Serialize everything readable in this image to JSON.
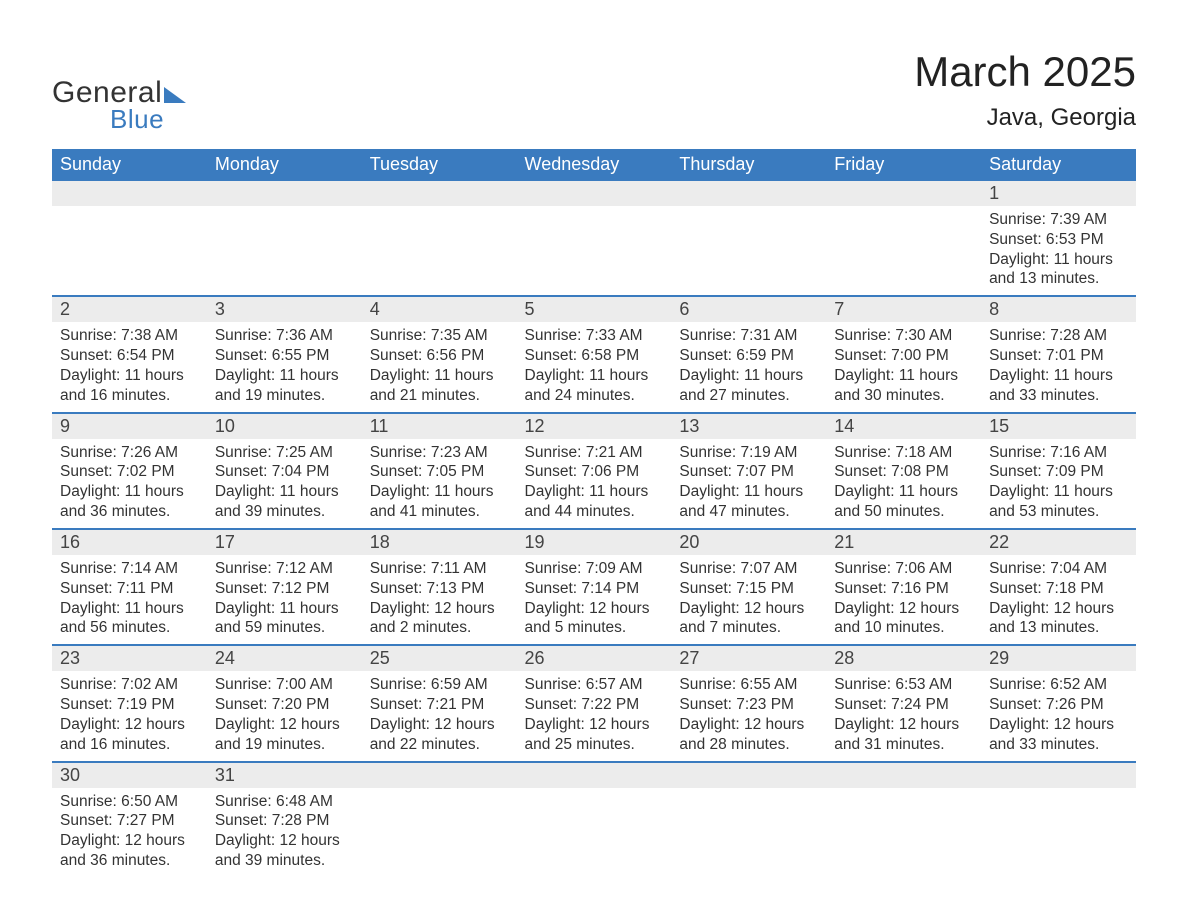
{
  "brand": {
    "word1": "General",
    "word2": "Blue"
  },
  "title": "March 2025",
  "location": "Java, Georgia",
  "colors": {
    "header_bg": "#3a7bbf",
    "header_text": "#ffffff",
    "daynum_bg": "#ececec",
    "border": "#3a7bbf",
    "body_text": "#333333",
    "brand_blue": "#3a7bbf"
  },
  "fonts": {
    "title_size": 42,
    "location_size": 24,
    "header_size": 18,
    "daynum_size": 18,
    "detail_size": 15.5
  },
  "days_of_week": [
    "Sunday",
    "Monday",
    "Tuesday",
    "Wednesday",
    "Thursday",
    "Friday",
    "Saturday"
  ],
  "labels": {
    "sunrise": "Sunrise:",
    "sunset": "Sunset:",
    "daylight": "Daylight:"
  },
  "weeks": [
    [
      null,
      null,
      null,
      null,
      null,
      null,
      {
        "n": "1",
        "sunrise": "7:39 AM",
        "sunset": "6:53 PM",
        "daylight": "11 hours and 13 minutes."
      }
    ],
    [
      {
        "n": "2",
        "sunrise": "7:38 AM",
        "sunset": "6:54 PM",
        "daylight": "11 hours and 16 minutes."
      },
      {
        "n": "3",
        "sunrise": "7:36 AM",
        "sunset": "6:55 PM",
        "daylight": "11 hours and 19 minutes."
      },
      {
        "n": "4",
        "sunrise": "7:35 AM",
        "sunset": "6:56 PM",
        "daylight": "11 hours and 21 minutes."
      },
      {
        "n": "5",
        "sunrise": "7:33 AM",
        "sunset": "6:58 PM",
        "daylight": "11 hours and 24 minutes."
      },
      {
        "n": "6",
        "sunrise": "7:31 AM",
        "sunset": "6:59 PM",
        "daylight": "11 hours and 27 minutes."
      },
      {
        "n": "7",
        "sunrise": "7:30 AM",
        "sunset": "7:00 PM",
        "daylight": "11 hours and 30 minutes."
      },
      {
        "n": "8",
        "sunrise": "7:28 AM",
        "sunset": "7:01 PM",
        "daylight": "11 hours and 33 minutes."
      }
    ],
    [
      {
        "n": "9",
        "sunrise": "7:26 AM",
        "sunset": "7:02 PM",
        "daylight": "11 hours and 36 minutes."
      },
      {
        "n": "10",
        "sunrise": "7:25 AM",
        "sunset": "7:04 PM",
        "daylight": "11 hours and 39 minutes."
      },
      {
        "n": "11",
        "sunrise": "7:23 AM",
        "sunset": "7:05 PM",
        "daylight": "11 hours and 41 minutes."
      },
      {
        "n": "12",
        "sunrise": "7:21 AM",
        "sunset": "7:06 PM",
        "daylight": "11 hours and 44 minutes."
      },
      {
        "n": "13",
        "sunrise": "7:19 AM",
        "sunset": "7:07 PM",
        "daylight": "11 hours and 47 minutes."
      },
      {
        "n": "14",
        "sunrise": "7:18 AM",
        "sunset": "7:08 PM",
        "daylight": "11 hours and 50 minutes."
      },
      {
        "n": "15",
        "sunrise": "7:16 AM",
        "sunset": "7:09 PM",
        "daylight": "11 hours and 53 minutes."
      }
    ],
    [
      {
        "n": "16",
        "sunrise": "7:14 AM",
        "sunset": "7:11 PM",
        "daylight": "11 hours and 56 minutes."
      },
      {
        "n": "17",
        "sunrise": "7:12 AM",
        "sunset": "7:12 PM",
        "daylight": "11 hours and 59 minutes."
      },
      {
        "n": "18",
        "sunrise": "7:11 AM",
        "sunset": "7:13 PM",
        "daylight": "12 hours and 2 minutes."
      },
      {
        "n": "19",
        "sunrise": "7:09 AM",
        "sunset": "7:14 PM",
        "daylight": "12 hours and 5 minutes."
      },
      {
        "n": "20",
        "sunrise": "7:07 AM",
        "sunset": "7:15 PM",
        "daylight": "12 hours and 7 minutes."
      },
      {
        "n": "21",
        "sunrise": "7:06 AM",
        "sunset": "7:16 PM",
        "daylight": "12 hours and 10 minutes."
      },
      {
        "n": "22",
        "sunrise": "7:04 AM",
        "sunset": "7:18 PM",
        "daylight": "12 hours and 13 minutes."
      }
    ],
    [
      {
        "n": "23",
        "sunrise": "7:02 AM",
        "sunset": "7:19 PM",
        "daylight": "12 hours and 16 minutes."
      },
      {
        "n": "24",
        "sunrise": "7:00 AM",
        "sunset": "7:20 PM",
        "daylight": "12 hours and 19 minutes."
      },
      {
        "n": "25",
        "sunrise": "6:59 AM",
        "sunset": "7:21 PM",
        "daylight": "12 hours and 22 minutes."
      },
      {
        "n": "26",
        "sunrise": "6:57 AM",
        "sunset": "7:22 PM",
        "daylight": "12 hours and 25 minutes."
      },
      {
        "n": "27",
        "sunrise": "6:55 AM",
        "sunset": "7:23 PM",
        "daylight": "12 hours and 28 minutes."
      },
      {
        "n": "28",
        "sunrise": "6:53 AM",
        "sunset": "7:24 PM",
        "daylight": "12 hours and 31 minutes."
      },
      {
        "n": "29",
        "sunrise": "6:52 AM",
        "sunset": "7:26 PM",
        "daylight": "12 hours and 33 minutes."
      }
    ],
    [
      {
        "n": "30",
        "sunrise": "6:50 AM",
        "sunset": "7:27 PM",
        "daylight": "12 hours and 36 minutes."
      },
      {
        "n": "31",
        "sunrise": "6:48 AM",
        "sunset": "7:28 PM",
        "daylight": "12 hours and 39 minutes."
      },
      null,
      null,
      null,
      null,
      null
    ]
  ]
}
